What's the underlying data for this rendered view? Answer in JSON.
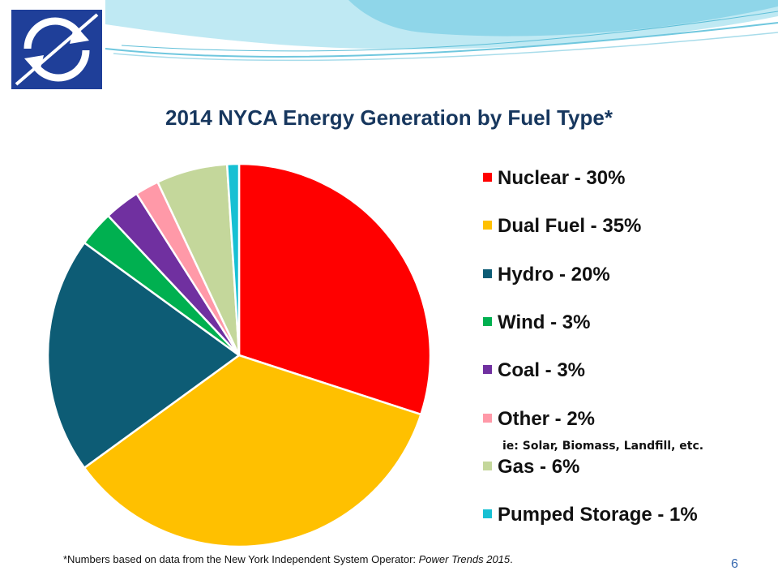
{
  "slide": {
    "footnote_prefix": "*Numbers based on data from the New York Independent  System Operator: ",
    "footnote_source": "Power Trends 2015",
    "footnote_end": ".",
    "page_number": "6",
    "colors": {
      "header_wave": "#7fd3e8",
      "logo_blue": "#1f3f99",
      "title": "#17375e"
    }
  },
  "chart_data": {
    "type": "pie",
    "title": "2014 NYCA Energy Generation by Fuel Type*",
    "legend_position": "right",
    "slices": [
      {
        "label": "Nuclear - 30%",
        "value": 30,
        "color": "#ff0000"
      },
      {
        "label": "Dual Fuel - 35%",
        "value": 35,
        "color": "#ffc000"
      },
      {
        "label": "Hydro - 20%",
        "value": 20,
        "color": "#0d5c75"
      },
      {
        "label": "Wind - 3%",
        "value": 3,
        "color": "#00b050"
      },
      {
        "label": "Coal - 3%",
        "value": 3,
        "color": "#7030a0"
      },
      {
        "label": "Other - 2%",
        "value": 2,
        "color": "#ff99a8",
        "note": "ie: Solar, Biomass, Landfill, etc."
      },
      {
        "label": "Gas - 6%",
        "value": 6,
        "color": "#c4d79b"
      },
      {
        "label": "Pumped Storage - 1%",
        "value": 1,
        "color": "#17c0d3"
      }
    ]
  }
}
